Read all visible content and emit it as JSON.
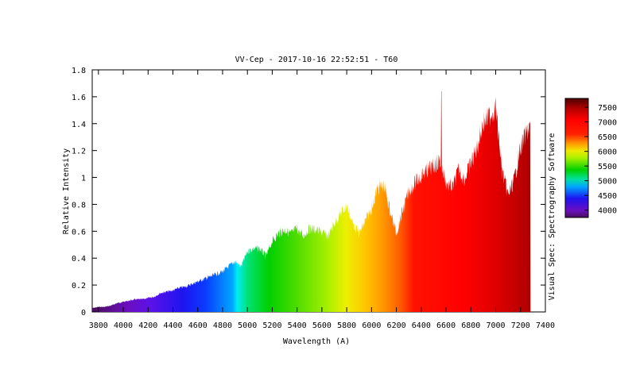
{
  "chart_data": {
    "type": "area",
    "title": "VV-Cep - 2017-10-16 22:52:51 - T60",
    "xlabel": "Wavelength (A)",
    "ylabel": "Relative Intensity",
    "right_label": "Visual Spec: Spectrography Software",
    "xlim": [
      3750,
      7400
    ],
    "ylim": [
      0,
      1.8
    ],
    "xticks": [
      "3800",
      "4000",
      "4200",
      "4400",
      "4600",
      "4800",
      "5000",
      "5200",
      "5400",
      "5600",
      "5800",
      "6000",
      "6200",
      "6400",
      "6600",
      "6800",
      "7000",
      "7200",
      "7400"
    ],
    "yticks": [
      "0",
      "0.2",
      "0.4",
      "0.6",
      "0.8",
      "1",
      "1.2",
      "1.4",
      "1.6",
      "1.8"
    ],
    "colorbar": {
      "range": [
        3750,
        7800
      ],
      "ticks": [
        "4000",
        "4500",
        "5000",
        "5500",
        "6000",
        "6500",
        "7000",
        "7500"
      ]
    },
    "spectrum": {
      "x": [
        3750,
        3800,
        3850,
        3900,
        3950,
        4000,
        4050,
        4100,
        4150,
        4200,
        4250,
        4300,
        4350,
        4400,
        4450,
        4500,
        4550,
        4600,
        4650,
        4700,
        4750,
        4800,
        4850,
        4900,
        4950,
        5000,
        5050,
        5100,
        5150,
        5200,
        5250,
        5300,
        5350,
        5400,
        5450,
        5500,
        5550,
        5600,
        5650,
        5700,
        5750,
        5800,
        5850,
        5900,
        5950,
        6000,
        6050,
        6100,
        6150,
        6200,
        6250,
        6300,
        6350,
        6400,
        6450,
        6500,
        6550,
        6600,
        6650,
        6700,
        6750,
        6800,
        6850,
        6900,
        6950,
        7000,
        7050,
        7100,
        7150,
        7200,
        7250,
        7280
      ],
      "y": [
        0.03,
        0.04,
        0.04,
        0.05,
        0.07,
        0.08,
        0.09,
        0.1,
        0.1,
        0.11,
        0.12,
        0.15,
        0.16,
        0.17,
        0.19,
        0.2,
        0.22,
        0.24,
        0.26,
        0.28,
        0.3,
        0.32,
        0.36,
        0.4,
        0.36,
        0.48,
        0.5,
        0.5,
        0.44,
        0.56,
        0.62,
        0.65,
        0.62,
        0.66,
        0.6,
        0.66,
        0.65,
        0.63,
        0.6,
        0.7,
        0.78,
        0.84,
        0.7,
        0.62,
        0.72,
        0.82,
        0.98,
        1.0,
        0.8,
        0.62,
        0.8,
        0.95,
        1.02,
        1.08,
        1.12,
        1.15,
        1.2,
        1.02,
        0.98,
        1.12,
        1.05,
        1.18,
        1.3,
        1.5,
        1.55,
        1.62,
        1.12,
        0.92,
        1.05,
        1.3,
        1.42,
        1.48
      ]
    },
    "emission_line": {
      "x": 6563,
      "y": 1.64
    }
  }
}
